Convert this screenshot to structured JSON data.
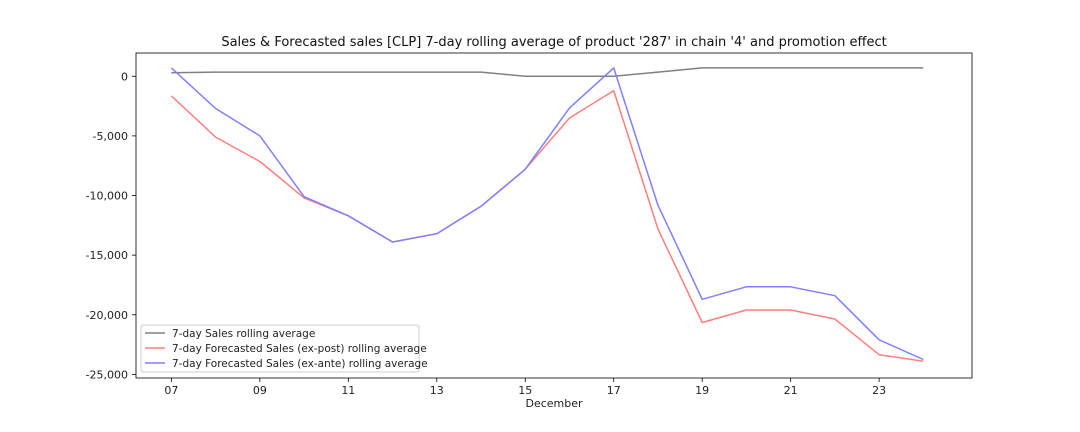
{
  "chart_data": {
    "type": "line",
    "title": "Sales & Forecasted sales [CLP] 7-day rolling average of product '287' in chain '4' and promotion effect",
    "xlabel": "December",
    "ylabel": "",
    "x": [
      7,
      8,
      9,
      10,
      11,
      12,
      13,
      14,
      15,
      16,
      17,
      18,
      19,
      20,
      21,
      22,
      23,
      24
    ],
    "xlim": [
      6.2,
      25.1
    ],
    "ylim": [
      -25300,
      1950
    ],
    "x_ticks": [
      "07",
      "09",
      "11",
      "13",
      "15",
      "17",
      "19",
      "21",
      "23"
    ],
    "x_tick_values": [
      7,
      9,
      11,
      13,
      15,
      17,
      19,
      21,
      23
    ],
    "y_ticks": [
      "0",
      "-5,000",
      "-10,000",
      "-15,000",
      "-20,000",
      "-25,000"
    ],
    "y_tick_values": [
      0,
      -5000,
      -10000,
      -15000,
      -20000,
      -25000
    ],
    "grid": false,
    "legend_position": "lower-left",
    "series": [
      {
        "name": "7-day Sales rolling average",
        "color": "#808080",
        "values": [
          300,
          350,
          350,
          350,
          350,
          350,
          350,
          350,
          0,
          0,
          0,
          350,
          700,
          700,
          700,
          700,
          700,
          700
        ]
      },
      {
        "name": "7-day Forecasted Sales (ex-post) rolling average",
        "color": "#ff7f7f",
        "values": [
          -1650,
          -5100,
          -7150,
          -10200,
          -11700,
          -13900,
          -13200,
          -10900,
          -7800,
          -3500,
          -1200,
          -12800,
          -20650,
          -19600,
          -19600,
          -20350,
          -23350,
          -23900
        ]
      },
      {
        "name": "7-day Forecasted Sales (ex-ante) rolling average",
        "color": "#7f7fff",
        "values": [
          700,
          -2700,
          -5000,
          -10100,
          -11700,
          -13900,
          -13200,
          -10900,
          -7800,
          -2650,
          700,
          -10800,
          -18700,
          -17650,
          -17650,
          -18400,
          -22100,
          -23750
        ]
      }
    ]
  }
}
